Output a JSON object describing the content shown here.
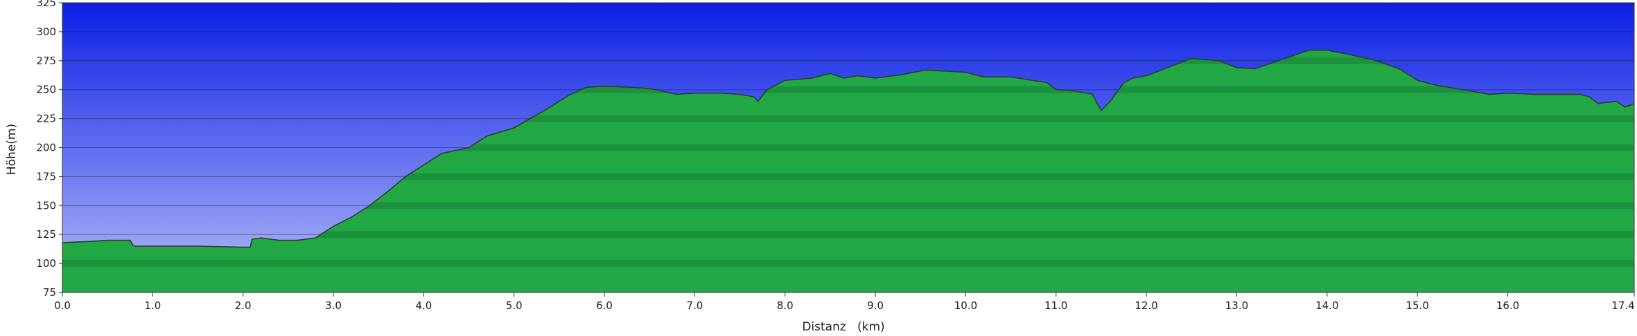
{
  "chart_data": {
    "type": "area",
    "title": "",
    "xlabel": "Distanz   (km)",
    "ylabel": "Höhe(m)",
    "xlim": [
      0.0,
      17.4
    ],
    "ylim": [
      75,
      325
    ],
    "x_ticks": [
      "0.0",
      "1.0",
      "2.0",
      "3.0",
      "4.0",
      "5.0",
      "6.0",
      "7.0",
      "8.0",
      "9.0",
      "10.0",
      "11.0",
      "12.0",
      "13.0",
      "14.0",
      "15.0",
      "16.0",
      "17.4"
    ],
    "x_tick_values": [
      0,
      1,
      2,
      3,
      4,
      5,
      6,
      7,
      8,
      9,
      10,
      11,
      12,
      13,
      14,
      15,
      16,
      17.4
    ],
    "y_ticks": [
      "325",
      "300",
      "275",
      "250",
      "225",
      "200",
      "175",
      "150",
      "125",
      "100",
      "75"
    ],
    "y_tick_values": [
      325,
      300,
      275,
      250,
      225,
      200,
      175,
      150,
      125,
      100,
      75
    ],
    "grid": true,
    "colors": {
      "sky_top": "#0b1fe6",
      "sky_bottom": "#b6bcf7",
      "area_fill": "#22a844",
      "area_band_dark": "#17803a",
      "outline": "#2d3e2d",
      "gridline": "#1a1a2a"
    },
    "series": [
      {
        "x": [
          0,
          0.3,
          0.5,
          0.75,
          0.78,
          0.8,
          1.0,
          1.5,
          2.0,
          2.08,
          2.1,
          2.2,
          2.4,
          2.6,
          2.8,
          3.0,
          3.2,
          3.4,
          3.6,
          3.8,
          4.0,
          4.2,
          4.5,
          4.7,
          5.0,
          5.2,
          5.4,
          5.6,
          5.8,
          6.0,
          6.3,
          6.5,
          6.8,
          7.0,
          7.3,
          7.5,
          7.65,
          7.7,
          7.8,
          8.0,
          8.3,
          8.5,
          8.65,
          8.8,
          9.0,
          9.3,
          9.55,
          10.0,
          10.2,
          10.5,
          10.9,
          11.0,
          11.2,
          11.4,
          11.5,
          11.6,
          11.75,
          11.85,
          12.0,
          12.2,
          12.5,
          12.8,
          13.0,
          13.2,
          13.5,
          13.8,
          14.0,
          14.2,
          14.5,
          14.8,
          15.0,
          15.2,
          15.5,
          15.8,
          16.0,
          16.3,
          16.6,
          16.8,
          16.9,
          17.0,
          17.2,
          17.3,
          17.4
        ],
        "y": [
          118,
          119,
          120,
          120,
          116,
          115,
          115,
          115,
          114,
          114,
          121,
          122,
          120,
          120,
          122,
          132,
          140,
          150,
          162,
          175,
          185,
          195,
          200,
          210,
          217,
          226,
          235,
          245,
          252,
          253,
          252,
          251,
          246,
          247,
          247,
          246,
          244,
          240,
          250,
          258,
          260,
          264,
          260,
          262,
          260,
          263,
          267,
          265,
          261,
          261,
          256,
          250,
          249,
          246,
          232,
          240,
          256,
          260,
          262,
          268,
          277,
          275,
          269,
          268,
          276,
          284,
          284,
          281,
          276,
          268,
          258,
          254,
          250,
          246,
          247,
          246,
          246,
          246,
          244,
          238,
          240,
          235,
          238
        ]
      }
    ]
  }
}
